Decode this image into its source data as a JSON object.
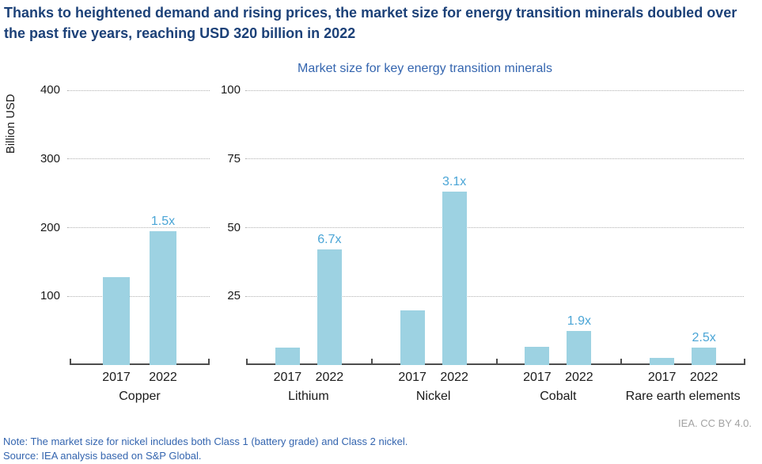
{
  "title": "Thanks to heightened demand and rising prices, the market size for energy transition minerals doubled over the past five years, reaching USD 320 billion in 2022",
  "footer": {
    "attribution": "IEA. CC BY 4.0.",
    "note": "Note: The market size for nickel includes both Class 1 (battery grade) and Class 2 nickel.",
    "source": "Source: IEA analysis based on S&P Global."
  },
  "colors": {
    "title": "#1c4178",
    "subtitle": "#3465af",
    "bar": "#9dd2e2",
    "multiplier_label": "#4aa5d6",
    "gridline": "#b0b0b0",
    "axis": "#4d4d4d",
    "note": "#3465af",
    "attribution": "#a3a3a3"
  },
  "chart_data": {
    "type": "bar",
    "title": "Market size for key energy transition minerals",
    "ylabel": "Billion USD",
    "unit": "Billion USD",
    "grid": "dotted horizontal",
    "years": [
      "2017",
      "2022"
    ],
    "panels": [
      {
        "ylim": [
          0,
          400
        ],
        "yticks": [
          400,
          300,
          200,
          100
        ],
        "groups": [
          {
            "mineral": "Copper",
            "years": [
              "2017",
              "2022"
            ],
            "values": [
              128,
              195
            ],
            "multiplier": "1.5x"
          }
        ]
      },
      {
        "ylim": [
          0,
          100
        ],
        "yticks": [
          100,
          75,
          50,
          25
        ],
        "groups": [
          {
            "mineral": "Lithium",
            "years": [
              "2017",
              "2022"
            ],
            "values": [
              6.3,
              42
            ],
            "multiplier": "6.7x"
          },
          {
            "mineral": "Nickel",
            "years": [
              "2017",
              "2022"
            ],
            "values": [
              20,
              63
            ],
            "multiplier": "3.1x"
          },
          {
            "mineral": "Cobalt",
            "years": [
              "2017",
              "2022"
            ],
            "values": [
              6.5,
              12.4
            ],
            "multiplier": "1.9x"
          },
          {
            "mineral": "Rare earth elements",
            "years": [
              "2017",
              "2022"
            ],
            "values": [
              2.6,
              6.4
            ],
            "multiplier": "2.5x"
          }
        ]
      }
    ]
  }
}
